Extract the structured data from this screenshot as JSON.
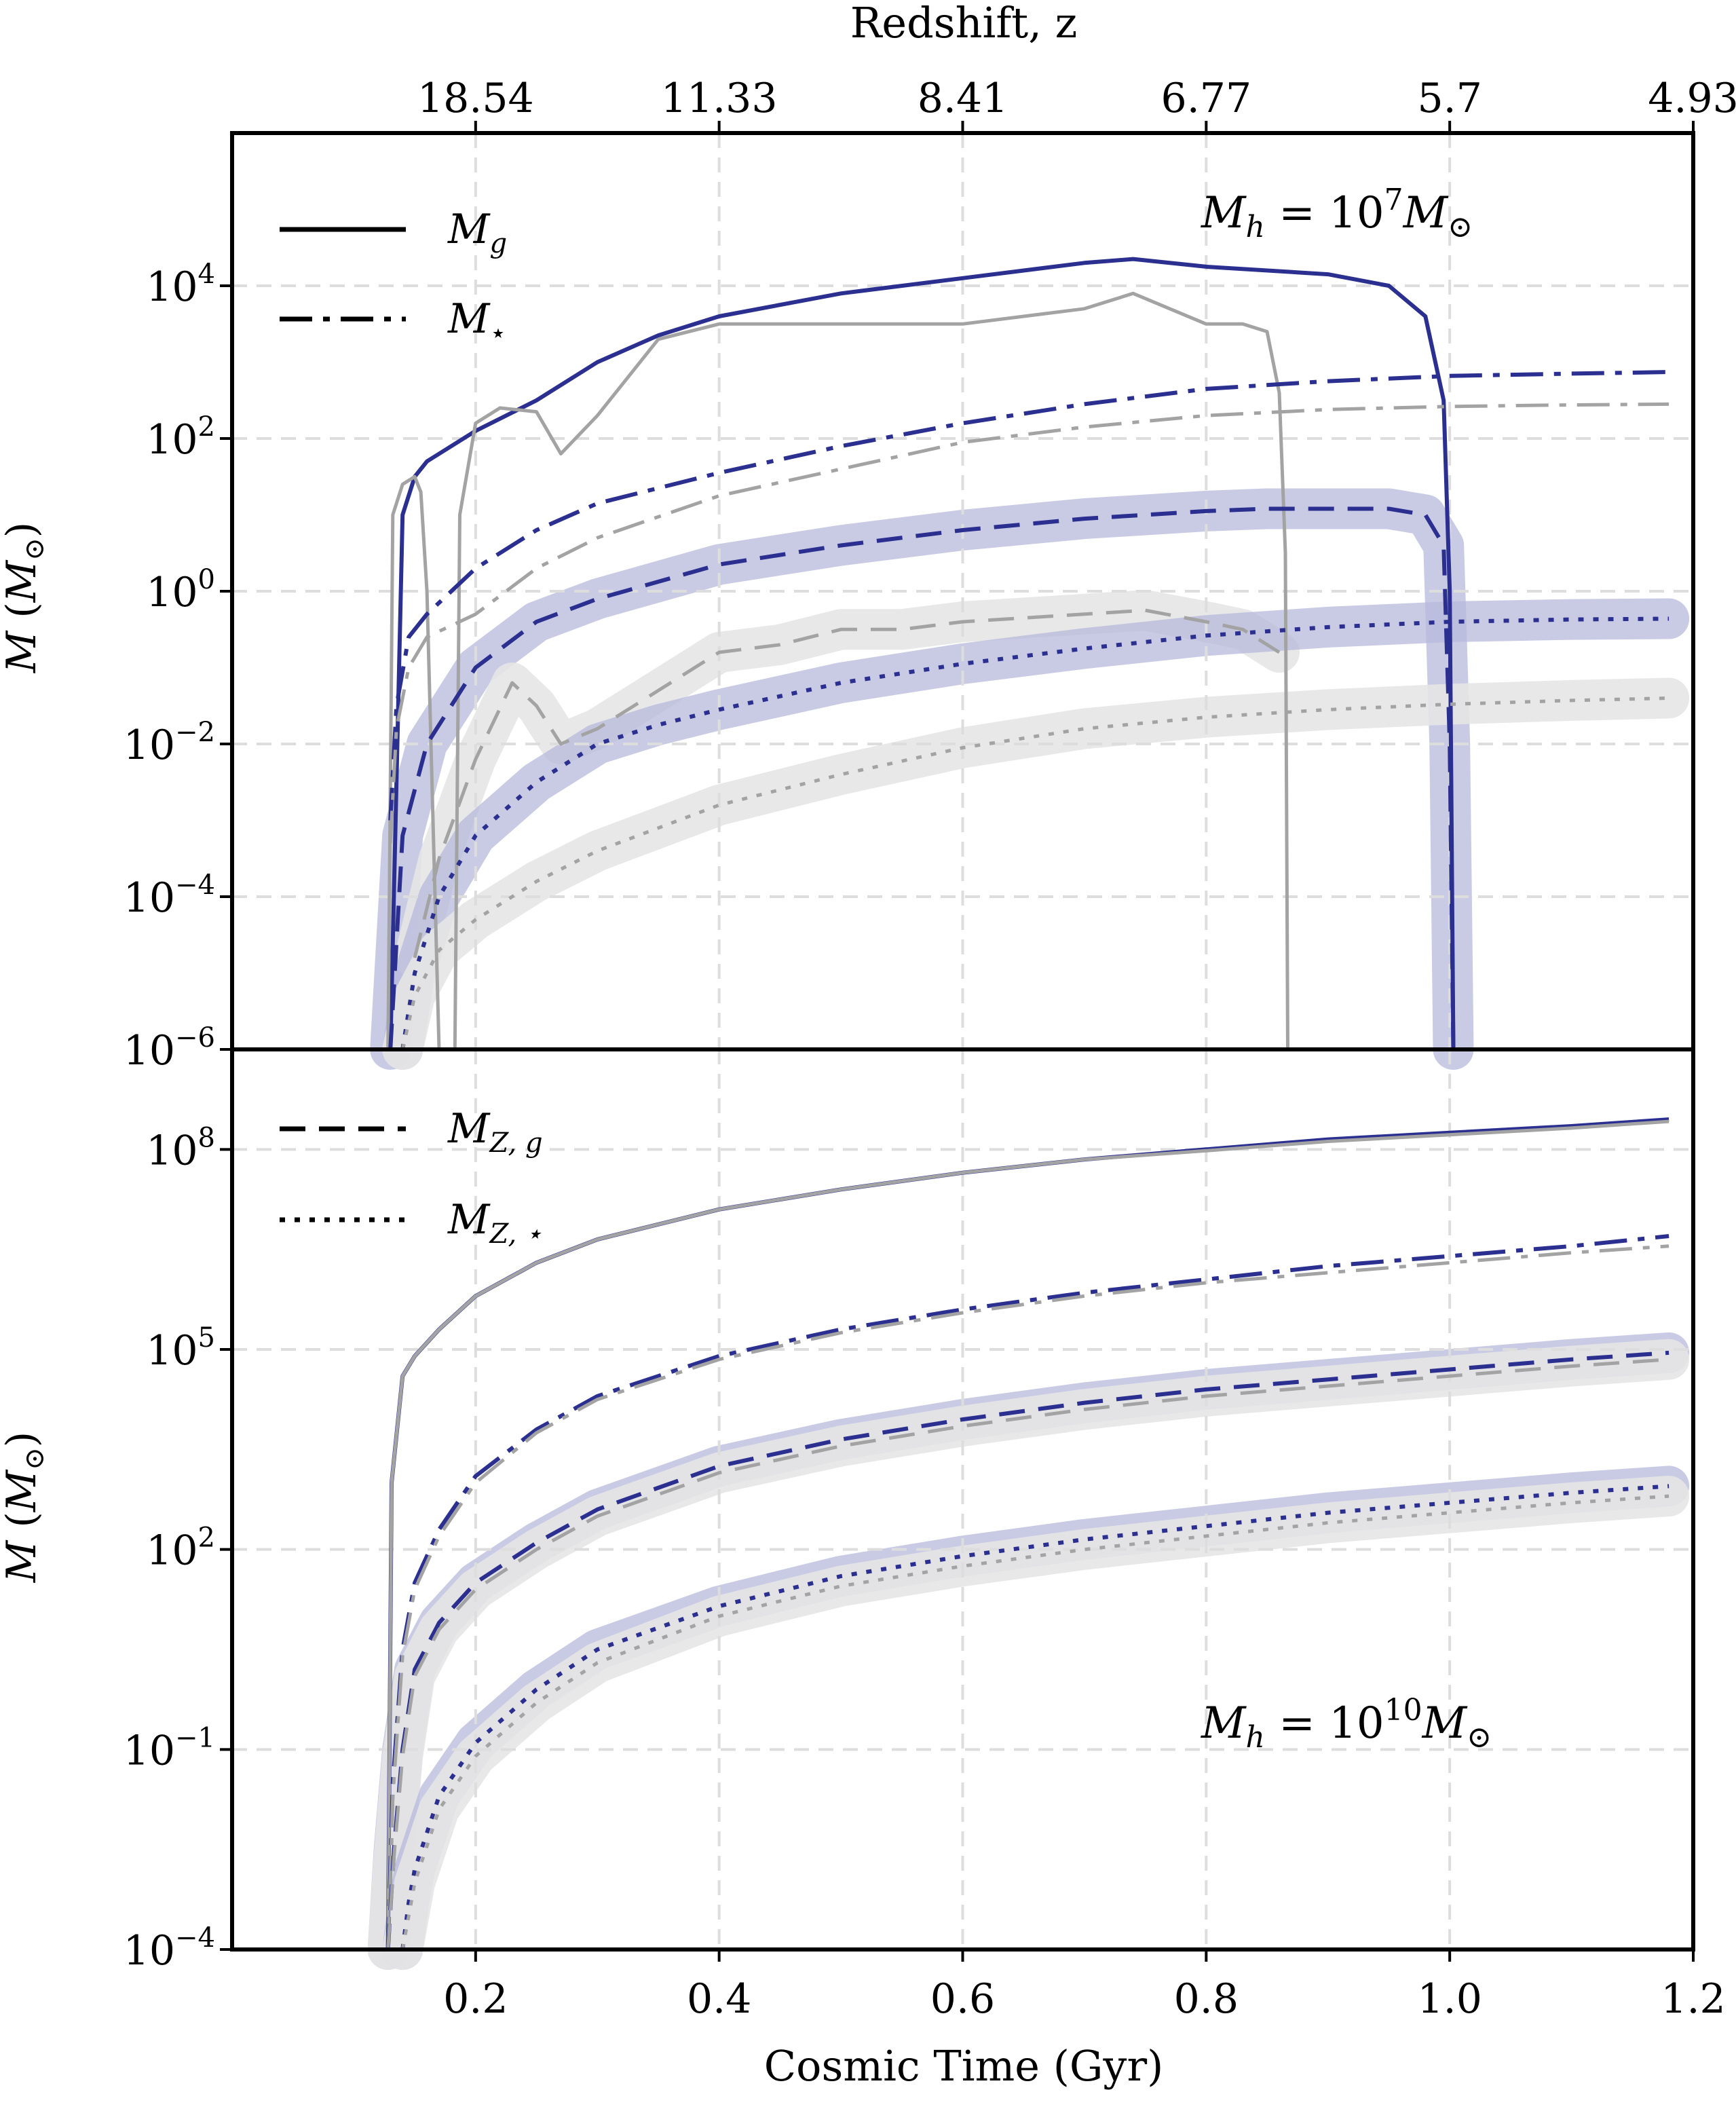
{
  "chart_data": {
    "type": "line",
    "xlabel": "Cosmic Time (Gyr)",
    "top_axis_label": "Redshift, z",
    "x_ticks": [
      0.2,
      0.4,
      0.6,
      0.8,
      1.0,
      1.2
    ],
    "x_tick_labels": [
      "0.2",
      "0.4",
      "0.6",
      "0.8",
      "1.0",
      "1.2"
    ],
    "xlim": [
      0.0,
      1.2
    ],
    "redshift_ticks": [
      {
        "t": 0.2,
        "label": "18.54"
      },
      {
        "t": 0.4,
        "label": "11.33"
      },
      {
        "t": 0.6,
        "label": "8.41"
      },
      {
        "t": 0.8,
        "label": "6.77"
      },
      {
        "t": 1.0,
        "label": "5.7"
      },
      {
        "t": 1.2,
        "label": "4.93"
      }
    ],
    "grid": true,
    "colors": {
      "blue": "#2b2f8f",
      "gray": "#a3a3a3",
      "blue_band": "#b7b9dc",
      "gray_band": "#e6e6e6"
    },
    "legend": {
      "location": "upper-left",
      "entries": [
        {
          "label": "M_g",
          "style": "solid"
        },
        {
          "label": "M_star",
          "style": "dashdot"
        },
        {
          "label": "M_Z,g",
          "style": "dashed"
        },
        {
          "label": "M_Z,star",
          "style": "dotted"
        }
      ]
    },
    "panels": [
      {
        "id": "top",
        "annotation": "M_h = 10^7 M_sun",
        "ylabel": "M (M_sun)",
        "yscale": "log",
        "ylim_log10": [
          -6,
          6
        ],
        "y_ticks_log10": [
          -6,
          -4,
          -2,
          0,
          2,
          4
        ],
        "series": [
          {
            "color": "blue",
            "style": "solid",
            "x": [
              0.13,
              0.14,
              0.15,
              0.16,
              0.17,
              0.2,
              0.25,
              0.3,
              0.35,
              0.4,
              0.5,
              0.6,
              0.7,
              0.74,
              0.8,
              0.9,
              0.95,
              0.98,
              0.995,
              1.0,
              1.003
            ],
            "y": [
              -6,
              1.0,
              1.5,
              1.7,
              1.8,
              2.1,
              2.5,
              3.0,
              3.35,
              3.6,
              3.9,
              4.1,
              4.3,
              4.35,
              4.25,
              4.15,
              4.0,
              3.6,
              2.5,
              0,
              -6
            ]
          },
          {
            "color": "gray",
            "style": "solid",
            "x": [
              0.128,
              0.132,
              0.14,
              0.15,
              0.155,
              0.16,
              0.165,
              0.17,
              0.172
            ],
            "y": [
              -6,
              1.0,
              1.4,
              1.5,
              1.3,
              0.0,
              -3.0,
              -6,
              -6
            ]
          },
          {
            "color": "gray",
            "style": "solid",
            "x": [
              0.183,
              0.187,
              0.2,
              0.22,
              0.25,
              0.27,
              0.3,
              0.35,
              0.4,
              0.5,
              0.6,
              0.7,
              0.74,
              0.8,
              0.83,
              0.85,
              0.86,
              0.865,
              0.867
            ],
            "y": [
              -6,
              1.0,
              2.2,
              2.4,
              2.35,
              1.8,
              2.3,
              3.3,
              3.5,
              3.5,
              3.5,
              3.7,
              3.9,
              3.5,
              3.5,
              3.4,
              2.6,
              0.5,
              -6
            ]
          },
          {
            "color": "blue",
            "style": "dashdot",
            "x": [
              0.13,
              0.135,
              0.145,
              0.16,
              0.2,
              0.25,
              0.3,
              0.4,
              0.5,
              0.6,
              0.7,
              0.8,
              0.9,
              1.0,
              1.1,
              1.18
            ],
            "y": [
              -3.0,
              -1.5,
              -0.6,
              -0.3,
              0.3,
              0.8,
              1.15,
              1.55,
              1.9,
              2.2,
              2.45,
              2.65,
              2.75,
              2.82,
              2.85,
              2.87
            ]
          },
          {
            "color": "gray",
            "style": "dashdot",
            "x": [
              0.13,
              0.135,
              0.145,
              0.16,
              0.2,
              0.25,
              0.3,
              0.4,
              0.5,
              0.6,
              0.7,
              0.8,
              0.9,
              1.0,
              1.1,
              1.18
            ],
            "y": [
              -3.3,
              -1.8,
              -1.0,
              -0.6,
              -0.3,
              0.3,
              0.7,
              1.25,
              1.6,
              1.95,
              2.15,
              2.3,
              2.38,
              2.42,
              2.44,
              2.45
            ]
          },
          {
            "color": "blue",
            "style": "dashed",
            "x": [
              0.13,
              0.14,
              0.16,
              0.2,
              0.25,
              0.3,
              0.4,
              0.5,
              0.6,
              0.7,
              0.8,
              0.85,
              0.9,
              0.95,
              0.98,
              0.995,
              1.0,
              1.003
            ],
            "y": [
              -6,
              -3.2,
              -2.0,
              -1.0,
              -0.4,
              -0.1,
              0.35,
              0.6,
              0.8,
              0.95,
              1.05,
              1.08,
              1.08,
              1.08,
              1.0,
              0.6,
              -2.0,
              -6
            ]
          },
          {
            "color": "gray",
            "style": "dashed",
            "x": [
              0.15,
              0.17,
              0.2,
              0.23,
              0.25,
              0.27,
              0.3,
              0.35,
              0.4,
              0.45,
              0.5,
              0.55,
              0.6,
              0.65,
              0.7,
              0.75,
              0.8,
              0.83,
              0.86
            ],
            "y": [
              -4.8,
              -3.5,
              -2.2,
              -1.2,
              -1.5,
              -2.0,
              -1.8,
              -1.3,
              -0.8,
              -0.7,
              -0.5,
              -0.5,
              -0.4,
              -0.35,
              -0.3,
              -0.25,
              -0.4,
              -0.5,
              -0.8
            ]
          },
          {
            "color": "blue",
            "style": "dotted",
            "x": [
              0.14,
              0.15,
              0.17,
              0.2,
              0.25,
              0.3,
              0.35,
              0.4,
              0.5,
              0.6,
              0.7,
              0.8,
              0.9,
              1.0,
              1.1,
              1.18
            ],
            "y": [
              -6,
              -5.0,
              -4.0,
              -3.2,
              -2.5,
              -2.0,
              -1.75,
              -1.55,
              -1.2,
              -0.95,
              -0.75,
              -0.58,
              -0.47,
              -0.4,
              -0.37,
              -0.36
            ]
          },
          {
            "color": "gray",
            "style": "dotted",
            "x": [
              0.14,
              0.15,
              0.17,
              0.2,
              0.25,
              0.3,
              0.35,
              0.4,
              0.5,
              0.6,
              0.7,
              0.8,
              0.9,
              1.0,
              1.1,
              1.18
            ],
            "y": [
              -6,
              -5.3,
              -4.7,
              -4.3,
              -3.8,
              -3.4,
              -3.1,
              -2.8,
              -2.4,
              -2.05,
              -1.8,
              -1.65,
              -1.55,
              -1.48,
              -1.43,
              -1.4
            ]
          }
        ]
      },
      {
        "id": "bottom",
        "annotation": "M_h = 10^10 M_sun",
        "ylabel": "M (M_sun)",
        "yscale": "log",
        "ylim_log10": [
          -4,
          9.5
        ],
        "y_ticks_log10": [
          -4,
          -1,
          2,
          5,
          8
        ],
        "series": [
          {
            "color": "blue",
            "style": "solid",
            "x": [
              0.128,
              0.131,
              0.14,
              0.15,
              0.17,
              0.2,
              0.25,
              0.3,
              0.4,
              0.5,
              0.6,
              0.7,
              0.8,
              0.9,
              1.0,
              1.1,
              1.18
            ],
            "y": [
              -4,
              3.0,
              4.6,
              4.9,
              5.3,
              5.8,
              6.3,
              6.65,
              7.1,
              7.4,
              7.65,
              7.85,
              8.0,
              8.15,
              8.25,
              8.35,
              8.45
            ]
          },
          {
            "color": "gray",
            "style": "solid",
            "x": [
              0.128,
              0.131,
              0.14,
              0.15,
              0.17,
              0.2,
              0.25,
              0.3,
              0.4,
              0.5,
              0.6,
              0.7,
              0.8,
              0.9,
              1.0,
              1.1,
              1.18
            ],
            "y": [
              -4,
              3.0,
              4.6,
              4.9,
              5.3,
              5.8,
              6.3,
              6.65,
              7.1,
              7.4,
              7.65,
              7.85,
              7.98,
              8.12,
              8.22,
              8.32,
              8.42
            ]
          },
          {
            "color": "blue",
            "style": "dashdot",
            "x": [
              0.128,
              0.132,
              0.14,
              0.15,
              0.17,
              0.2,
              0.25,
              0.3,
              0.4,
              0.5,
              0.6,
              0.7,
              0.8,
              0.9,
              1.0,
              1.1,
              1.18
            ],
            "y": [
              -4,
              -1.5,
              0.5,
              1.5,
              2.3,
              3.1,
              3.8,
              4.3,
              4.9,
              5.3,
              5.6,
              5.85,
              6.05,
              6.25,
              6.4,
              6.55,
              6.7
            ]
          },
          {
            "color": "gray",
            "style": "dashdot",
            "x": [
              0.128,
              0.132,
              0.14,
              0.15,
              0.17,
              0.2,
              0.25,
              0.3,
              0.4,
              0.5,
              0.6,
              0.7,
              0.8,
              0.9,
              1.0,
              1.1,
              1.18
            ],
            "y": [
              -4,
              -1.7,
              0.4,
              1.4,
              2.2,
              3.0,
              3.75,
              4.25,
              4.85,
              5.25,
              5.55,
              5.8,
              6.0,
              6.15,
              6.3,
              6.45,
              6.55
            ]
          },
          {
            "color": "blue",
            "style": "dashed",
            "x": [
              0.128,
              0.133,
              0.14,
              0.15,
              0.17,
              0.2,
              0.25,
              0.3,
              0.4,
              0.5,
              0.6,
              0.7,
              0.8,
              0.9,
              1.0,
              1.1,
              1.18
            ],
            "y": [
              -4,
              -2.5,
              -1.0,
              0.2,
              0.9,
              1.5,
              2.1,
              2.6,
              3.25,
              3.65,
              3.95,
              4.2,
              4.4,
              4.55,
              4.7,
              4.85,
              4.95
            ]
          },
          {
            "color": "gray",
            "style": "dashed",
            "x": [
              0.128,
              0.133,
              0.14,
              0.15,
              0.17,
              0.2,
              0.25,
              0.3,
              0.4,
              0.5,
              0.6,
              0.7,
              0.8,
              0.9,
              1.0,
              1.1,
              1.18
            ],
            "y": [
              -4,
              -2.6,
              -1.1,
              0.1,
              0.8,
              1.4,
              2.0,
              2.5,
              3.15,
              3.55,
              3.85,
              4.1,
              4.3,
              4.45,
              4.6,
              4.75,
              4.85
            ]
          },
          {
            "color": "blue",
            "style": "dotted",
            "x": [
              0.14,
              0.145,
              0.15,
              0.17,
              0.2,
              0.25,
              0.3,
              0.4,
              0.5,
              0.6,
              0.7,
              0.8,
              0.9,
              1.0,
              1.1,
              1.18
            ],
            "y": [
              -4,
              -3.3,
              -2.8,
              -1.7,
              -0.9,
              -0.1,
              0.5,
              1.15,
              1.6,
              1.9,
              2.15,
              2.35,
              2.55,
              2.7,
              2.85,
              2.95
            ]
          },
          {
            "color": "gray",
            "style": "dotted",
            "x": [
              0.14,
              0.145,
              0.15,
              0.17,
              0.2,
              0.25,
              0.3,
              0.4,
              0.5,
              0.6,
              0.7,
              0.8,
              0.9,
              1.0,
              1.1,
              1.18
            ],
            "y": [
              -4,
              -3.5,
              -3.0,
              -1.9,
              -1.1,
              -0.3,
              0.3,
              1.0,
              1.45,
              1.75,
              2.0,
              2.2,
              2.4,
              2.55,
              2.7,
              2.8
            ]
          }
        ]
      }
    ]
  }
}
